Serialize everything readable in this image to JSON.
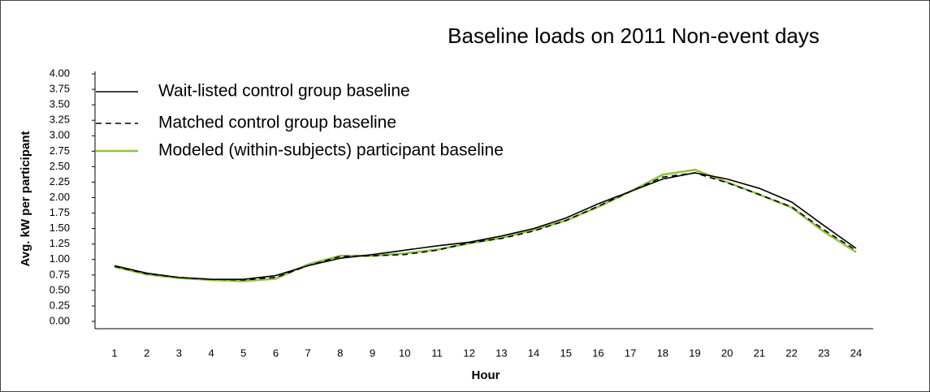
{
  "chart_data": {
    "type": "line",
    "title": "Baseline loads on 2011 Non-event days",
    "x_label": "Hour",
    "y_label": "Avg. kW per participant",
    "categories": [
      "1",
      "2",
      "3",
      "4",
      "5",
      "6",
      "7",
      "8",
      "9",
      "10",
      "11",
      "12",
      "13",
      "14",
      "15",
      "16",
      "17",
      "18",
      "19",
      "20",
      "21",
      "22",
      "23",
      "24"
    ],
    "series": [
      {
        "name": "Wait-listed control group baseline",
        "color": "#000000",
        "style": "solid",
        "values": [
          0.9,
          0.78,
          0.71,
          0.68,
          0.68,
          0.74,
          0.9,
          1.02,
          1.08,
          1.15,
          1.22,
          1.28,
          1.38,
          1.5,
          1.67,
          1.9,
          2.1,
          2.3,
          2.4,
          2.3,
          2.15,
          1.93,
          1.55,
          1.18
        ]
      },
      {
        "name": "Matched control group baseline",
        "color": "#000000",
        "style": "dashed",
        "values": [
          0.89,
          0.77,
          0.71,
          0.68,
          0.67,
          0.71,
          0.9,
          1.05,
          1.06,
          1.08,
          1.15,
          1.27,
          1.34,
          1.46,
          1.63,
          1.86,
          2.1,
          2.33,
          2.4,
          2.24,
          2.05,
          1.85,
          1.48,
          1.15
        ]
      },
      {
        "name": "Modeled (within-subjects) participant baseline",
        "color": "#8dc63f",
        "style": "solid",
        "values": [
          0.88,
          0.76,
          0.7,
          0.67,
          0.65,
          0.69,
          0.92,
          1.06,
          1.06,
          1.1,
          1.16,
          1.26,
          1.35,
          1.48,
          1.63,
          1.85,
          2.1,
          2.37,
          2.45,
          2.25,
          2.05,
          1.84,
          1.45,
          1.12
        ]
      }
    ],
    "ylim": [
      0,
      4
    ],
    "yticks": [
      {
        "value": 0,
        "label": "0.00"
      },
      0.25,
      {
        "value": 0.5,
        "label": "0.50"
      },
      {
        "value": 0.75,
        "label": "0.75"
      },
      {
        "value": 1,
        "label": "1.00"
      },
      1.25,
      {
        "value": 1.5,
        "label": "1.50"
      },
      1.75,
      {
        "value": 2,
        "label": "2.00"
      },
      2.25,
      {
        "value": 2.5,
        "label": "2.50"
      },
      2.75,
      {
        "value": 3,
        "label": "3.00"
      },
      3.25,
      {
        "value": 3.5,
        "label": "3.50"
      },
      3.75,
      {
        "value": 4,
        "label": "4.00"
      }
    ],
    "legend": "top-left"
  }
}
